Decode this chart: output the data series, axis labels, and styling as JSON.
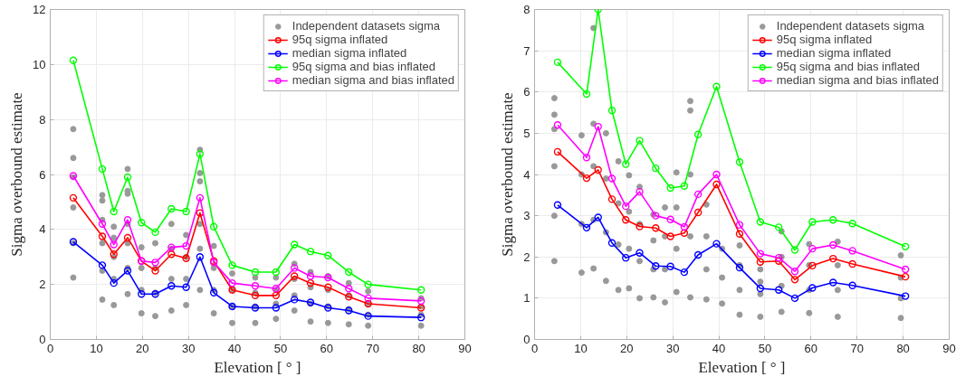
{
  "chart_data": [
    {
      "type": "line",
      "xlabel": "Elevation [ ° ]",
      "ylabel": "Sigma overbound estimate",
      "xlim": [
        0,
        90
      ],
      "xticks": [
        0,
        10,
        20,
        30,
        40,
        50,
        60,
        70,
        80,
        90
      ],
      "ylim": [
        0,
        12
      ],
      "yticks": [
        0,
        2,
        4,
        6,
        8,
        10,
        12
      ],
      "grid": true,
      "legend": "top right",
      "series": [
        {
          "name": "Independent datasets sigma",
          "type": "scatter",
          "marker": "circle",
          "color": "#999999",
          "x": [
            5,
            5,
            5,
            5,
            5,
            5,
            11.3,
            11.3,
            11.3,
            11.3,
            11.3,
            11.3,
            13.8,
            13.8,
            13.8,
            13.8,
            13.8,
            16.8,
            16.8,
            16.8,
            16.8,
            16.8,
            16.8,
            16.8,
            19.8,
            19.8,
            19.8,
            19.8,
            22.8,
            22.8,
            22.8,
            22.8,
            26.3,
            26.3,
            26.3,
            26.3,
            29.5,
            29.5,
            29.5,
            29.5,
            32.5,
            32.5,
            32.5,
            32.5,
            32.5,
            32.5,
            35.5,
            35.5,
            35.5,
            35.5,
            39.5,
            39.5,
            39.5,
            39.5,
            44.5,
            44.5,
            44.5,
            44.5,
            49,
            49,
            49,
            49,
            53,
            53,
            53,
            53,
            56.5,
            56.5,
            56.5,
            56.5,
            60.3,
            60.3,
            60.3,
            60.3,
            64.8,
            64.8,
            64.8,
            64.8,
            69,
            69,
            69,
            69,
            80.5,
            80.5,
            80.5,
            80.5
          ],
          "values": [
            2.25,
            3.5,
            4.8,
            5.9,
            6.6,
            7.65,
            1.45,
            2.5,
            3.5,
            4.35,
            5.05,
            5.25,
            1.25,
            2.2,
            3.0,
            3.7,
            4.1,
            1.65,
            2.6,
            3.5,
            4.2,
            5.3,
            5.4,
            6.2,
            0.95,
            1.8,
            2.6,
            3.35,
            0.85,
            1.7,
            2.6,
            3.5,
            1.05,
            2.2,
            3.3,
            4.2,
            1.25,
            2.2,
            3.0,
            3.8,
            1.8,
            3.3,
            4.2,
            5.75,
            6.05,
            6.9,
            0.95,
            1.8,
            2.6,
            3.4,
            0.6,
            1.2,
            1.8,
            2.4,
            0.6,
            1.2,
            1.7,
            2.25,
            0.75,
            1.3,
            1.8,
            2.25,
            1.05,
            1.6,
            2.2,
            2.75,
            0.65,
            1.3,
            1.9,
            2.45,
            0.6,
            1.2,
            1.8,
            2.3,
            0.55,
            1.1,
            1.6,
            2.05,
            0.5,
            0.9,
            1.3,
            1.75,
            0.5,
            0.9,
            1.2,
            1.5
          ]
        },
        {
          "name": "95q sigma inflated",
          "marker": "circle",
          "color": "#ff0000",
          "x": [
            5,
            11.3,
            13.8,
            16.8,
            19.8,
            22.8,
            26.3,
            29.5,
            32.5,
            35.5,
            39.5,
            44.5,
            49,
            53,
            56.5,
            60.3,
            64.8,
            69,
            80.5
          ],
          "values": [
            5.15,
            3.75,
            3.1,
            3.7,
            2.85,
            2.5,
            3.1,
            2.95,
            4.6,
            2.85,
            1.8,
            1.6,
            1.6,
            2.3,
            2.05,
            1.9,
            1.55,
            1.3,
            1.15
          ]
        },
        {
          "name": "median sigma inflated",
          "marker": "circle",
          "color": "#0000ff",
          "x": [
            5,
            11.3,
            13.8,
            16.8,
            19.8,
            22.8,
            26.3,
            29.5,
            32.5,
            35.5,
            39.5,
            44.5,
            49,
            53,
            56.5,
            60.3,
            64.8,
            69,
            80.5
          ],
          "values": [
            3.55,
            2.7,
            2.05,
            2.5,
            1.65,
            1.65,
            1.95,
            1.9,
            3.0,
            1.7,
            1.2,
            1.15,
            1.15,
            1.45,
            1.35,
            1.15,
            1.05,
            0.85,
            0.8
          ]
        },
        {
          "name": "95q sigma and bias inflated",
          "marker": "circle",
          "color": "#00ff00",
          "x": [
            5,
            11.3,
            13.8,
            16.8,
            19.8,
            22.8,
            26.3,
            29.5,
            32.5,
            35.5,
            39.5,
            44.5,
            49,
            53,
            56.5,
            60.3,
            64.8,
            69,
            80.5
          ],
          "values": [
            10.15,
            6.2,
            4.65,
            5.9,
            4.25,
            3.9,
            4.75,
            4.65,
            6.75,
            4.1,
            2.7,
            2.45,
            2.45,
            3.45,
            3.2,
            3.05,
            2.45,
            2.0,
            1.8
          ]
        },
        {
          "name": "median sigma and bias inflated",
          "marker": "circle",
          "color": "#ff00ff",
          "x": [
            5,
            11.3,
            13.8,
            16.8,
            19.8,
            22.8,
            26.3,
            29.5,
            32.5,
            35.5,
            39.5,
            44.5,
            49,
            53,
            56.5,
            60.3,
            64.8,
            69,
            80.5
          ],
          "values": [
            5.95,
            4.2,
            3.45,
            4.35,
            2.85,
            2.8,
            3.35,
            3.4,
            5.15,
            2.8,
            2.05,
            1.95,
            1.85,
            2.6,
            2.3,
            2.25,
            1.85,
            1.5,
            1.4
          ]
        }
      ]
    },
    {
      "type": "line",
      "xlabel": "Elevation [ ° ]",
      "ylabel": "Sigma overbound estimate",
      "xlim": [
        0,
        90
      ],
      "xticks": [
        0,
        10,
        20,
        30,
        40,
        50,
        60,
        70,
        80,
        90
      ],
      "ylim": [
        0,
        8
      ],
      "yticks": [
        0,
        1,
        2,
        3,
        4,
        5,
        6,
        7,
        8
      ],
      "grid": true,
      "legend": "top right",
      "series": [
        {
          "name": "Independent datasets sigma",
          "type": "scatter",
          "marker": "circle",
          "color": "#999999",
          "x": [
            4.3,
            4.3,
            4.3,
            4.3,
            4.3,
            4.3,
            10.2,
            10.2,
            10.2,
            10.2,
            12.8,
            12.8,
            12.8,
            12.8,
            12.8,
            15.5,
            15.5,
            15.5,
            15.5,
            18.2,
            18.2,
            18.2,
            18.2,
            20.5,
            20.5,
            20.5,
            20.5,
            22.8,
            22.8,
            22.8,
            22.8,
            25.8,
            25.8,
            25.8,
            25.8,
            28.3,
            28.3,
            28.3,
            28.3,
            30.8,
            30.8,
            30.8,
            30.8,
            33.8,
            33.8,
            33.8,
            33.8,
            33.8,
            37.3,
            37.3,
            37.3,
            37.3,
            40.7,
            40.7,
            40.7,
            44.5,
            44.5,
            44.5,
            44.5,
            49,
            49,
            49,
            49,
            53.6,
            53.6,
            53.6,
            53.6,
            59.6,
            59.6,
            59.6,
            59.6,
            65.8,
            65.8,
            65.8,
            65.8,
            79.5,
            79.5,
            79.5,
            79.5
          ],
          "values": [
            1.9,
            3.0,
            4.2,
            5.1,
            5.45,
            5.85,
            1.62,
            2.8,
            4.0,
            4.95,
            1.72,
            2.9,
            4.2,
            5.23,
            7.55,
            1.42,
            2.6,
            3.9,
            5.0,
            1.2,
            2.3,
            3.3,
            4.32,
            1.24,
            2.2,
            3.1,
            3.98,
            1.0,
            1.9,
            2.8,
            3.7,
            1.02,
            1.7,
            2.4,
            3.03,
            0.9,
            1.7,
            2.5,
            3.2,
            1.15,
            2.2,
            3.2,
            4.05,
            1.02,
            2.5,
            4.0,
            5.55,
            5.78,
            0.97,
            1.7,
            2.5,
            3.27,
            0.87,
            1.5,
            2.2,
            0.6,
            1.2,
            1.8,
            2.28,
            0.55,
            1.1,
            1.4,
            1.7,
            0.67,
            1.3,
            2.0,
            2.62,
            0.64,
            1.2,
            1.8,
            2.31,
            0.55,
            1.2,
            1.8,
            2.37,
            0.52,
            1.0,
            1.5,
            2.04
          ]
        },
        {
          "name": "95q sigma inflated",
          "marker": "circle",
          "color": "#ff0000",
          "x": [
            5,
            11.3,
            13.8,
            16.8,
            19.8,
            22.8,
            26.3,
            29.5,
            32.5,
            35.5,
            39.5,
            44.5,
            49,
            53,
            56.5,
            60.3,
            64.8,
            69,
            80.5
          ],
          "values": [
            4.55,
            3.91,
            4.11,
            3.4,
            2.9,
            2.74,
            2.7,
            2.5,
            2.58,
            3.08,
            3.76,
            2.56,
            1.88,
            1.9,
            1.45,
            1.79,
            1.96,
            1.83,
            1.52
          ]
        },
        {
          "name": "median sigma inflated",
          "marker": "circle",
          "color": "#0000ff",
          "x": [
            5,
            11.3,
            13.8,
            16.8,
            19.8,
            22.8,
            26.3,
            29.5,
            32.5,
            35.5,
            39.5,
            44.5,
            49,
            53,
            56.5,
            60.3,
            64.8,
            69,
            80.5
          ],
          "values": [
            3.26,
            2.71,
            2.96,
            2.34,
            1.98,
            2.1,
            1.78,
            1.77,
            1.63,
            2.05,
            2.32,
            1.74,
            1.24,
            1.2,
            1.0,
            1.25,
            1.38,
            1.31,
            1.05
          ]
        },
        {
          "name": "95q sigma and bias inflated",
          "marker": "circle",
          "color": "#00ff00",
          "x": [
            5,
            11.3,
            13.8,
            16.8,
            19.8,
            22.8,
            26.3,
            29.5,
            32.5,
            35.5,
            39.5,
            44.5,
            49,
            53,
            56.5,
            60.3,
            64.8,
            69,
            80.5
          ],
          "values": [
            6.72,
            5.95,
            8.0,
            5.55,
            4.25,
            4.82,
            4.15,
            3.67,
            3.72,
            4.97,
            6.13,
            4.3,
            2.85,
            2.72,
            2.17,
            2.85,
            2.9,
            2.81,
            2.25
          ]
        },
        {
          "name": "median sigma and bias inflated",
          "marker": "circle",
          "color": "#ff00ff",
          "x": [
            5,
            11.3,
            13.8,
            16.8,
            19.8,
            22.8,
            26.3,
            29.5,
            32.5,
            35.5,
            39.5,
            44.5,
            49,
            53,
            56.5,
            60.3,
            64.8,
            69,
            80.5
          ],
          "values": [
            5.2,
            4.41,
            5.16,
            3.9,
            3.23,
            3.58,
            3.0,
            2.91,
            2.73,
            3.52,
            4.0,
            2.78,
            2.08,
            1.98,
            1.65,
            2.2,
            2.29,
            2.15,
            1.7
          ]
        }
      ]
    }
  ]
}
